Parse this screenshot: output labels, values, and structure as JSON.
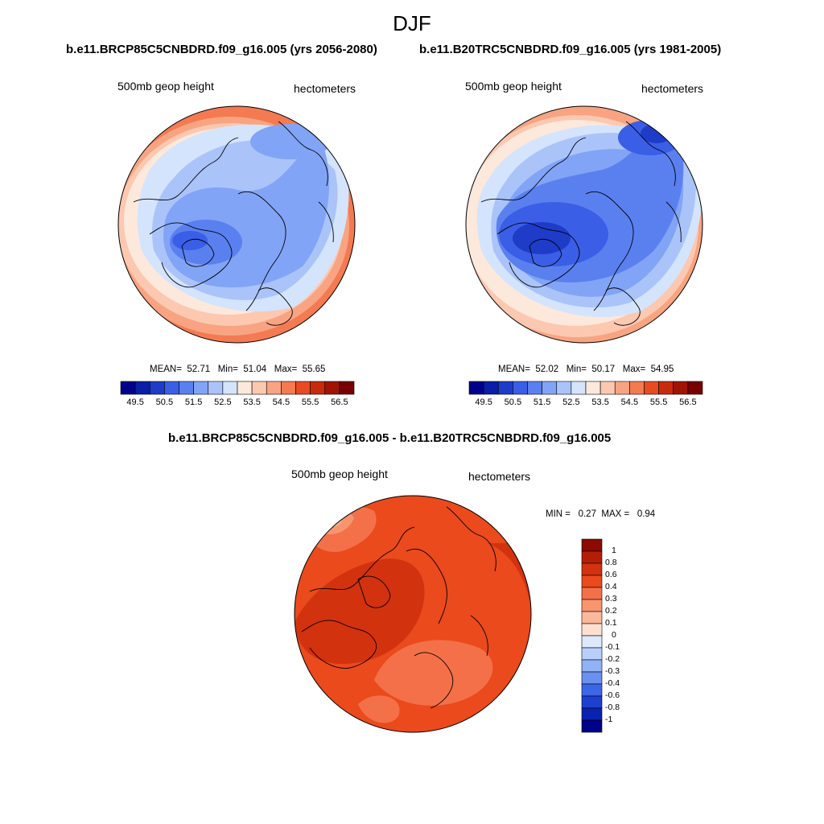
{
  "title": "DJF",
  "panels": [
    {
      "id": "future",
      "title": "b.e11.BRCP85C5CNBDRD.f09_g16.005 (yrs 2056-2080)",
      "left_label": "500mb geop height",
      "right_label": "hectometers",
      "stats": {
        "mean_label": "MEAN=",
        "mean": "52.71",
        "min_label": "Min=",
        "min": "51.04",
        "max_label": "Max=",
        "max": "55.65"
      }
    },
    {
      "id": "historical",
      "title": "b.e11.B20TRC5CNBDRD.f09_g16.005 (yrs 1981-2005)",
      "left_label": "500mb geop height",
      "right_label": "hectometers",
      "stats": {
        "mean_label": "MEAN=",
        "mean": "52.02",
        "min_label": "Min=",
        "min": "50.17",
        "max_label": "Max=",
        "max": "54.95"
      }
    },
    {
      "id": "difference",
      "title": "b.e11.BRCP85C5CNBDRD.f09_g16.005 - b.e11.B20TRC5CNBDRD.f09_g16.005",
      "left_label": "500mb geop height",
      "right_label": "hectometers",
      "stats": {
        "min_label": "MIN =",
        "min": "0.27",
        "max_label": "MAX =",
        "max": "0.94"
      }
    }
  ],
  "colorbar_abs": {
    "ticks": [
      "49.5",
      "50.5",
      "51.5",
      "52.5",
      "53.5",
      "54.5",
      "55.5",
      "56.5"
    ],
    "colors": [
      "#00008c",
      "#0a1ea6",
      "#1e3cc8",
      "#3a5ee6",
      "#5a80f0",
      "#82a4f6",
      "#aac4fa",
      "#d4e4fc",
      "#fde8dc",
      "#fcc8b0",
      "#f8a482",
      "#f47a52",
      "#e84a22",
      "#c82a0c",
      "#a01404",
      "#780000"
    ]
  },
  "colorbar_diff": {
    "labels": [
      "1",
      "0.8",
      "0.6",
      "0.4",
      "0.3",
      "0.2",
      "0.1",
      "0",
      "-0.1",
      "-0.2",
      "-0.3",
      "-0.4",
      "-0.6",
      "-0.8",
      "-1"
    ],
    "colors": [
      "#8c0a00",
      "#b41e06",
      "#d2320e",
      "#ea4a1c",
      "#f47048",
      "#f8946e",
      "#fbb89a",
      "#fde0d0",
      "#dce8fc",
      "#b8cffa",
      "#92b2f6",
      "#6a90f0",
      "#3c66e8",
      "#1e40d0",
      "#0a22b0",
      "#00008a"
    ]
  },
  "chart_data": [
    {
      "type": "heatmap",
      "title": "b.e11.BRCP85C5CNBDRD.f09_g16.005 (yrs 2056-2080)",
      "variable": "500mb geop height",
      "units": "hectometers",
      "season": "DJF",
      "projection": "north polar stereographic",
      "mean": 52.71,
      "min": 51.04,
      "max": 55.65,
      "contour_levels": [
        49.5,
        50,
        50.5,
        51,
        51.5,
        52,
        52.5,
        53,
        53.5,
        54,
        54.5,
        55,
        55.5,
        56,
        56.5
      ]
    },
    {
      "type": "heatmap",
      "title": "b.e11.B20TRC5CNBDRD.f09_g16.005 (yrs 1981-2005)",
      "variable": "500mb geop height",
      "units": "hectometers",
      "season": "DJF",
      "projection": "north polar stereographic",
      "mean": 52.02,
      "min": 50.17,
      "max": 54.95,
      "contour_levels": [
        49.5,
        50,
        50.5,
        51,
        51.5,
        52,
        52.5,
        53,
        53.5,
        54,
        54.5,
        55,
        55.5,
        56,
        56.5
      ]
    },
    {
      "type": "heatmap",
      "title": "b.e11.BRCP85C5CNBDRD.f09_g16.005 - b.e11.B20TRC5CNBDRD.f09_g16.005",
      "variable": "500mb geop height",
      "units": "hectometers",
      "season": "DJF",
      "projection": "north polar stereographic",
      "min": 0.27,
      "max": 0.94,
      "contour_levels": [
        -1,
        -0.8,
        -0.6,
        -0.4,
        -0.3,
        -0.2,
        -0.1,
        0,
        0.1,
        0.2,
        0.3,
        0.4,
        0.6,
        0.8,
        1
      ]
    }
  ]
}
